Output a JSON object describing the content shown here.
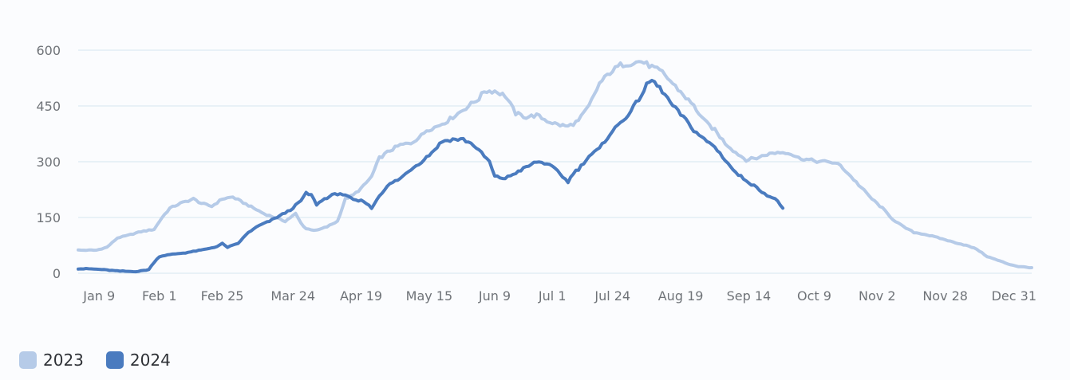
{
  "chart_data": {
    "type": "line",
    "title": "",
    "xlabel": "",
    "ylabel": "",
    "ylim": [
      0,
      600
    ],
    "y_ticks": [
      0,
      150,
      300,
      450,
      600
    ],
    "x_tick_labels": [
      "Jan 9",
      "Feb 1",
      "Feb 25",
      "Mar 24",
      "Apr 19",
      "May 15",
      "Jun 9",
      "Jul 1",
      "Jul 24",
      "Aug 19",
      "Sep 14",
      "Oct 9",
      "Nov 2",
      "Nov 28",
      "Dec 31"
    ],
    "x_tick_days": [
      9,
      32,
      56,
      83,
      109,
      135,
      160,
      182,
      205,
      231,
      257,
      282,
      306,
      332,
      365
    ],
    "x_unit": "day of year",
    "grid": "horizontal",
    "legend_position": "bottom-left",
    "series": [
      {
        "name": "2023",
        "color": "#b6cbe8",
        "x": [
          1,
          8,
          12,
          16,
          20,
          25,
          30,
          33,
          36,
          40,
          45,
          48,
          52,
          56,
          60,
          64,
          68,
          72,
          76,
          80,
          84,
          86,
          88,
          92,
          96,
          100,
          103,
          106,
          110,
          113,
          116,
          120,
          124,
          128,
          132,
          134,
          138,
          142,
          146,
          150,
          154,
          156,
          160,
          164,
          168,
          172,
          176,
          180,
          184,
          188,
          192,
          196,
          200,
          204,
          208,
          212,
          216,
          220,
          224,
          228,
          232,
          236,
          240,
          244,
          248,
          252,
          256,
          260,
          264,
          268,
          272,
          276,
          280,
          284,
          288,
          292,
          296,
          300,
          304,
          308,
          312,
          316,
          320,
          324,
          328,
          332,
          336,
          340,
          344,
          348,
          352,
          356,
          360,
          365
        ],
        "y": [
          62,
          62,
          70,
          95,
          102,
          112,
          118,
          150,
          175,
          188,
          200,
          188,
          180,
          200,
          205,
          190,
          175,
          160,
          150,
          140,
          160,
          135,
          120,
          115,
          125,
          140,
          200,
          210,
          235,
          260,
          310,
          330,
          345,
          350,
          370,
          385,
          395,
          410,
          430,
          450,
          470,
          490,
          490,
          478,
          430,
          420,
          425,
          410,
          400,
          395,
          410,
          450,
          510,
          540,
          560,
          565,
          570,
          555,
          540,
          510,
          480,
          450,
          410,
          385,
          350,
          325,
          305,
          310,
          320,
          325,
          325,
          310,
          305,
          300,
          300,
          290,
          260,
          230,
          200,
          175,
          145,
          125,
          110,
          105,
          98,
          90,
          82,
          75,
          65,
          45,
          35,
          25,
          18,
          15
        ]
      },
      {
        "name": "2024",
        "color": "#4a7bbf",
        "x": [
          1,
          5,
          10,
          16,
          20,
          24,
          28,
          30,
          32,
          34,
          38,
          42,
          46,
          50,
          54,
          56,
          58,
          62,
          66,
          70,
          74,
          78,
          82,
          86,
          88,
          90,
          92,
          95,
          98,
          101,
          104,
          107,
          110,
          113,
          116,
          120,
          124,
          128,
          132,
          136,
          140,
          144,
          148,
          152,
          154,
          158,
          160,
          164,
          168,
          172,
          176,
          180,
          184,
          186,
          188,
          190,
          192,
          196,
          200,
          204,
          208,
          212,
          216,
          218,
          220,
          224,
          228,
          232,
          236,
          240,
          244,
          248,
          252,
          256,
          260,
          264,
          268,
          270
        ],
        "y": [
          12,
          12,
          10,
          6,
          5,
          5,
          10,
          30,
          45,
          48,
          52,
          55,
          60,
          65,
          72,
          80,
          70,
          80,
          110,
          128,
          140,
          155,
          170,
          195,
          215,
          210,
          185,
          200,
          210,
          215,
          205,
          195,
          195,
          175,
          210,
          240,
          255,
          280,
          300,
          325,
          355,
          360,
          360,
          345,
          330,
          300,
          260,
          255,
          270,
          285,
          300,
          295,
          275,
          260,
          245,
          270,
          280,
          315,
          335,
          375,
          405,
          435,
          480,
          505,
          520,
          490,
          450,
          420,
          385,
          360,
          340,
          305,
          270,
          250,
          230,
          210,
          195,
          175
        ]
      }
    ]
  }
}
